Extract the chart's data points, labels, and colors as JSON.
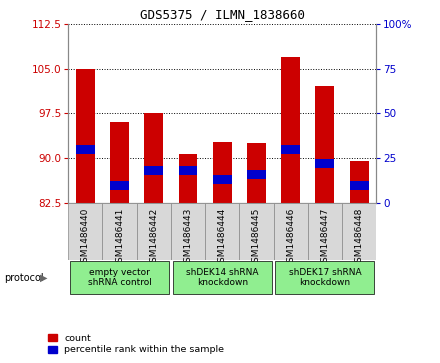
{
  "title": "GDS5375 / ILMN_1838660",
  "samples": [
    "GSM1486440",
    "GSM1486441",
    "GSM1486442",
    "GSM1486443",
    "GSM1486444",
    "GSM1486445",
    "GSM1486446",
    "GSM1486447",
    "GSM1486448"
  ],
  "count_values": [
    105.0,
    96.0,
    97.5,
    90.8,
    92.8,
    92.5,
    107.0,
    102.0,
    89.5
  ],
  "percentile_values": [
    30.0,
    10.0,
    18.0,
    18.0,
    13.0,
    16.0,
    30.0,
    22.0,
    10.0
  ],
  "ylim_left": [
    82.5,
    112.5
  ],
  "yticks_left": [
    82.5,
    90.0,
    97.5,
    105.0,
    112.5
  ],
  "yticks_right": [
    0,
    25,
    50,
    75,
    100
  ],
  "ylim_right": [
    0,
    100
  ],
  "bar_color": "#cc0000",
  "percentile_color": "#0000cc",
  "bar_width": 0.55,
  "group_ranges": [
    [
      0,
      2
    ],
    [
      3,
      5
    ],
    [
      6,
      8
    ]
  ],
  "group_labels": [
    "empty vector\nshRNA control",
    "shDEK14 shRNA\nknockdown",
    "shDEK17 shRNA\nknockdown"
  ],
  "group_color": "#90ee90",
  "protocol_label": "protocol",
  "legend_count_label": "count",
  "legend_percentile_label": "percentile rank within the sample",
  "background_color": "#ffffff",
  "grid_color": "#000000",
  "axis_left_color": "#cc0000",
  "axis_right_color": "#0000cc",
  "title_fontsize": 9,
  "tick_fontsize": 7.5,
  "sample_label_fontsize": 6.5,
  "group_fontsize": 6.5
}
